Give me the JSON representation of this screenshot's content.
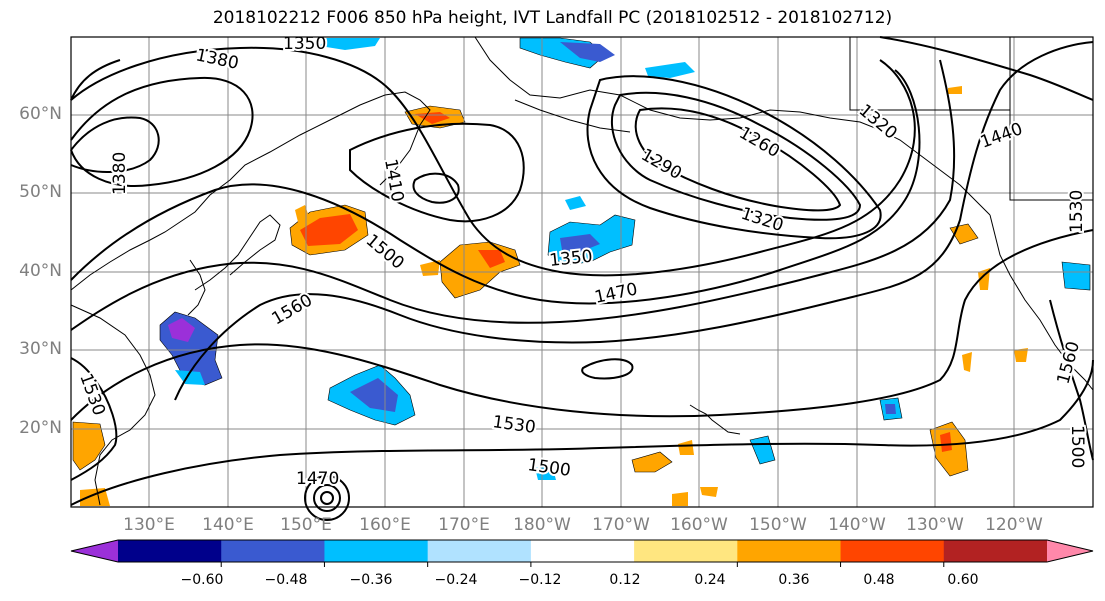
{
  "title": "2018102212 F006 850 hPa height, IVT Landfall PC (2018102512 - 2018102712)",
  "lat_ticks": [
    "60°N",
    "50°N",
    "40°N",
    "30°N",
    "20°N"
  ],
  "lon_ticks": [
    "130°E",
    "140°E",
    "150°E",
    "160°E",
    "170°E",
    "180°W",
    "170°W",
    "160°W",
    "150°W",
    "140°W",
    "130°W",
    "120°W"
  ],
  "contour_labels": [
    "1350",
    "1380",
    "1380",
    "1410",
    "1500",
    "1560",
    "1350",
    "1470",
    "1290",
    "1260",
    "1320",
    "1440",
    "1530",
    "1530",
    "1500",
    "1470",
    "1560",
    "1500",
    "1320",
    "1530"
  ],
  "colorbar": {
    "labels": [
      "−0.60",
      "−0.48",
      "−0.36",
      "−0.24",
      "−0.12",
      "0.12",
      "0.24",
      "0.36",
      "0.48",
      "0.60"
    ],
    "colors": [
      "#9b30d9",
      "#00008b",
      "#3a5ad0",
      "#00bfff",
      "#b0e2ff",
      "#ffffff",
      "#ffe680",
      "#ffa500",
      "#ff4500",
      "#b22222",
      "#ff88aa"
    ]
  },
  "colors": {
    "contour": "#000000",
    "grid": "#888888",
    "coast": "#000000"
  }
}
